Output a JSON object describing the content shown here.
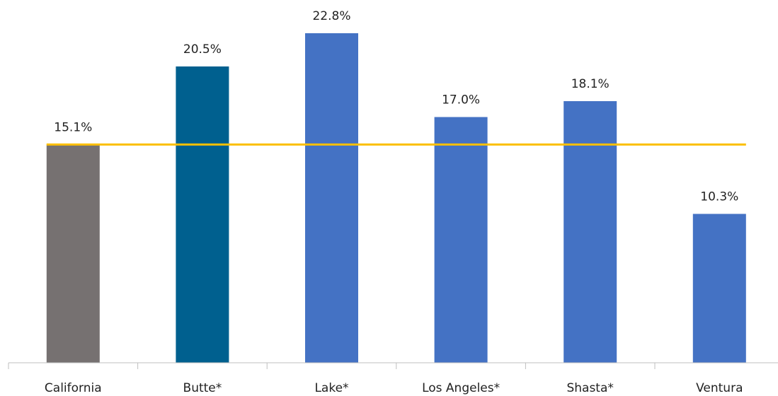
{
  "chart_data": {
    "type": "bar",
    "categories": [
      "California",
      "Butte*",
      "Lake*",
      "Los Angeles*",
      "Shasta*",
      "Ventura"
    ],
    "values": [
      15.1,
      20.5,
      22.8,
      17.0,
      18.1,
      10.3
    ],
    "value_labels": [
      "15.1%",
      "20.5%",
      "22.8%",
      "17.0%",
      "18.1%",
      "10.3%"
    ],
    "colors": [
      "#767171",
      "#00608f",
      "#4472c4",
      "#4472c4",
      "#4472c4",
      "#4472c4"
    ],
    "reference_line_color": "#fbbf00",
    "ylim": [
      0,
      25
    ]
  }
}
